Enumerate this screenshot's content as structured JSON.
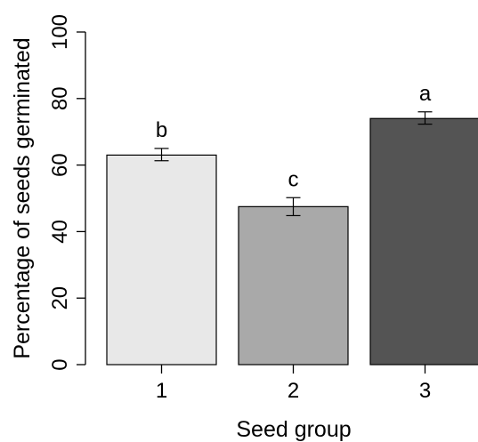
{
  "chart_data": {
    "type": "bar",
    "xlabel": "Seed group",
    "ylabel": "Percentage of seeds germinated",
    "categories": [
      "1",
      "2",
      "3"
    ],
    "values": [
      63,
      47.5,
      74
    ],
    "error_bars": [
      {
        "low": 61.3,
        "high": 65.0
      },
      {
        "low": 44.8,
        "high": 50.2
      },
      {
        "low": 72.3,
        "high": 76.0
      }
    ],
    "significance_letters": [
      "b",
      "c",
      "a"
    ],
    "bar_colors": [
      "#e8e8e8",
      "#a9a9a9",
      "#545454"
    ],
    "ylim": [
      0,
      100
    ],
    "yticks": [
      "0",
      "20",
      "40",
      "60",
      "80",
      "100"
    ],
    "grid": false,
    "legend": false
  }
}
